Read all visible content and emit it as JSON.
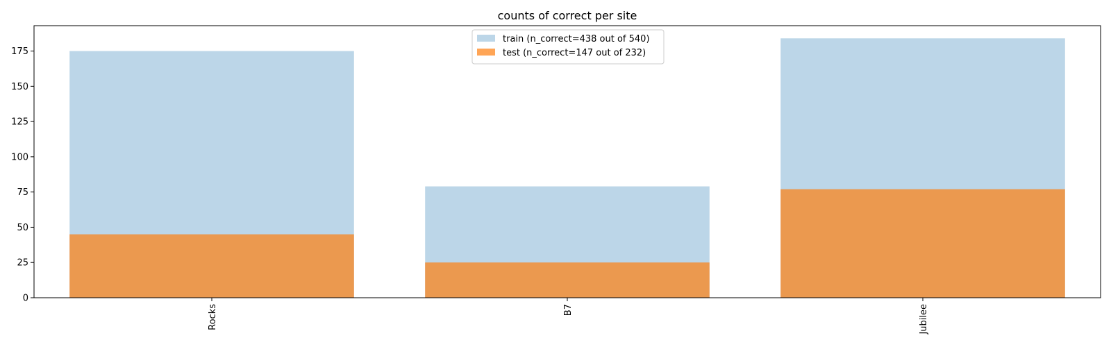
{
  "chart_data": {
    "type": "bar",
    "title": "counts of correct per site",
    "xlabel": "",
    "ylabel": "",
    "categories": [
      "Rocks",
      "B7",
      "Jubilee"
    ],
    "series": [
      {
        "name": "train (n_correct=438 out of 540)",
        "values": [
          175,
          79,
          184
        ],
        "color": "#a6c8e0",
        "opacity": 0.75
      },
      {
        "name": "test (n_correct=147 out of 232)",
        "values": [
          45,
          25,
          77
        ],
        "color": "#ff7f0e",
        "opacity": 0.7
      }
    ],
    "ylim": [
      0,
      193
    ],
    "yticks": [
      0,
      25,
      50,
      75,
      100,
      125,
      150,
      175
    ],
    "grid": false,
    "legend_position": "top-center",
    "x_tick_rotation": "vertical"
  }
}
